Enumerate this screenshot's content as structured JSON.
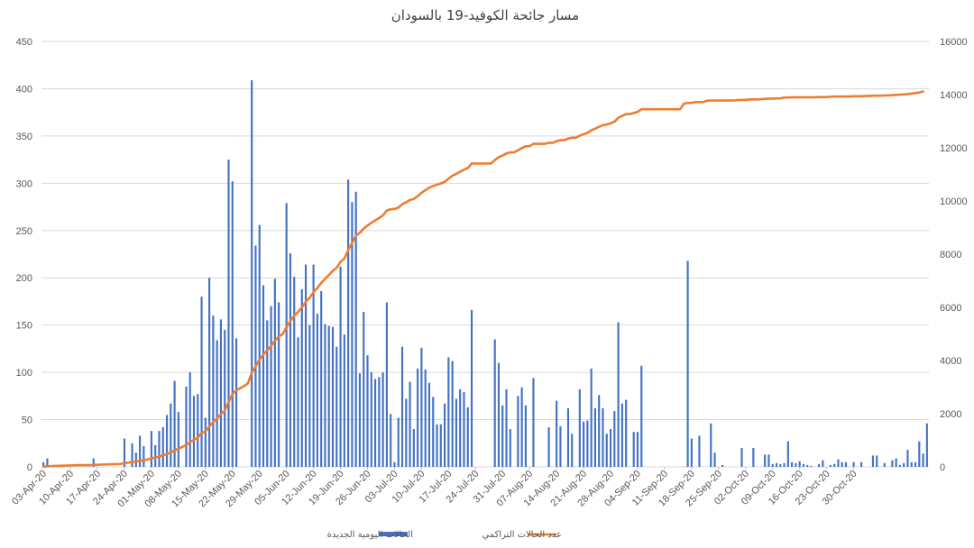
{
  "chart_data": {
    "type": "bar+line",
    "title": "مسار جائحة الكوفيد-19 بالسودان",
    "xlabel": "",
    "ylabel": "",
    "y_left_lim": [
      0,
      450
    ],
    "y_left_ticks": [
      0,
      50,
      100,
      150,
      200,
      250,
      300,
      350,
      400,
      450
    ],
    "y_right_lim": [
      0,
      16000
    ],
    "y_right_ticks": [
      0,
      2000,
      4000,
      6000,
      8000,
      10000,
      12000,
      14000,
      16000
    ],
    "x_tick_labels": [
      "03-Apr-20",
      "10-Apr-20",
      "17-Apr-20",
      "24-Apr-20",
      "01-May-20",
      "08-May-20",
      "15-May-20",
      "22-May-20",
      "29-May-20",
      "05-Jun-20",
      "12-Jun-20",
      "19-Jun-20",
      "26-Jun-20",
      "03-Jul-20",
      "10-Jul-20",
      "17-Jul-20",
      "24-Jul-20",
      "31-Jul-20",
      "07-Aug-20",
      "14-Aug-20",
      "21-Aug-20",
      "28-Aug-20",
      "04-Sep-20",
      "11-Sep-20",
      "18-Sep-20",
      "25-Sep-20",
      "02-Oct-20",
      "09-Oct-20",
      "16-Oct-20",
      "23-Oct-20",
      "30-Oct-20"
    ],
    "grid": true,
    "legend_position": "bottom",
    "colors": {
      "bars": "#4472c4",
      "line": "#ed7d31",
      "grid": "#d9d9d9",
      "text": "#595959"
    },
    "series": [
      {
        "name": "الحالات اليومية الجديدة",
        "type": "bar",
        "axis": "left",
        "values": [
          5,
          9,
          0,
          0,
          0,
          0,
          0,
          0,
          0,
          0,
          0,
          0,
          0,
          9,
          0,
          0,
          0,
          0,
          0,
          0,
          0,
          30,
          0,
          25,
          15,
          33,
          22,
          0,
          38,
          23,
          38,
          42,
          55,
          67,
          91,
          58,
          0,
          85,
          100,
          75,
          77,
          180,
          52,
          200,
          160,
          134,
          156,
          145,
          325,
          302,
          136,
          0,
          0,
          0,
          409,
          234,
          256,
          192,
          155,
          170,
          199,
          174,
          0,
          279,
          226,
          201,
          137,
          188,
          214,
          150,
          214,
          162,
          186,
          151,
          149,
          148,
          127,
          212,
          140,
          304,
          280,
          291,
          99,
          164,
          118,
          100,
          93,
          95,
          100,
          174,
          56,
          5,
          52,
          127,
          72,
          90,
          40,
          104,
          126,
          103,
          89,
          74,
          45,
          45,
          67,
          116,
          112,
          72,
          82,
          79,
          63,
          166,
          0,
          0,
          0,
          0,
          0,
          135,
          110,
          65,
          82,
          40,
          0,
          75,
          84,
          65,
          0,
          94,
          0,
          0,
          0,
          42,
          0,
          70,
          43,
          0,
          62,
          35,
          0,
          82,
          48,
          49,
          104,
          62,
          76,
          62,
          35,
          40,
          59,
          153,
          67,
          71,
          0,
          37,
          37,
          107,
          0,
          0,
          0,
          0,
          0,
          0,
          0,
          0,
          0,
          0,
          0,
          218,
          30,
          0,
          33,
          0,
          0,
          46,
          15,
          0,
          2,
          0,
          0,
          0,
          0,
          20,
          0,
          0,
          20,
          0,
          0,
          13,
          13,
          3,
          4,
          3,
          4,
          27,
          5,
          4,
          6,
          3,
          2,
          1,
          0,
          3,
          7,
          0,
          2,
          3,
          8,
          5,
          5,
          0,
          5,
          0,
          5,
          0,
          0,
          12,
          12,
          0,
          4,
          0,
          7,
          9,
          2,
          4,
          18,
          5,
          5,
          27,
          14,
          46
        ]
      },
      {
        "name": "عدد الحالات التراكمي",
        "type": "line",
        "axis": "right",
        "values": [
          10,
          20,
          30,
          35,
          40,
          45,
          50,
          55,
          60,
          65,
          66,
          66,
          66,
          75,
          80,
          85,
          90,
          95,
          100,
          105,
          110,
          140,
          160,
          185,
          200,
          230,
          250,
          280,
          320,
          350,
          390,
          430,
          480,
          540,
          620,
          690,
          750,
          830,
          930,
          1020,
          1100,
          1280,
          1330,
          1520,
          1690,
          1820,
          1980,
          2120,
          2440,
          2740,
          2880,
          2960,
          3040,
          3140,
          3540,
          3780,
          4030,
          4220,
          4380,
          4550,
          4740,
          4910,
          4990,
          5260,
          5480,
          5690,
          5830,
          6000,
          6210,
          6360,
          6570,
          6730,
          6920,
          7070,
          7220,
          7370,
          7490,
          7710,
          7840,
          8150,
          8420,
          8700,
          8800,
          8960,
          9080,
          9180,
          9270,
          9360,
          9460,
          9640,
          9690,
          9700,
          9750,
          9880,
          9950,
          10040,
          10080,
          10180,
          10310,
          10410,
          10500,
          10570,
          10610,
          10660,
          10720,
          10840,
          10950,
          11020,
          11100,
          11180,
          11240,
          11410,
          11410,
          11410,
          11410,
          11410,
          11410,
          11540,
          11650,
          11710,
          11790,
          11830,
          11830,
          11910,
          11990,
          12060,
          12060,
          12150,
          12150,
          12150,
          12150,
          12190,
          12190,
          12250,
          12290,
          12290,
          12350,
          12380,
          12380,
          12460,
          12510,
          12560,
          12660,
          12720,
          12790,
          12850,
          12880,
          12920,
          12980,
          13130,
          13200,
          13270,
          13270,
          13310,
          13350,
          13450,
          13450,
          13450,
          13450,
          13450,
          13450,
          13450,
          13450,
          13450,
          13450,
          13450,
          13660,
          13690,
          13690,
          13720,
          13720,
          13720,
          13770,
          13780,
          13780,
          13780,
          13780,
          13780,
          13780,
          13780,
          13800,
          13800,
          13800,
          13820,
          13820,
          13820,
          13830,
          13840,
          13850,
          13850,
          13860,
          13860,
          13890,
          13890,
          13900,
          13900,
          13900,
          13900,
          13900,
          13900,
          13900,
          13910,
          13910,
          13910,
          13920,
          13930,
          13930,
          13930,
          13930,
          13930,
          13940,
          13940,
          13940,
          13950,
          13950,
          13960,
          13960,
          13960,
          13970,
          13970,
          13980,
          13990,
          14000,
          14010,
          14020,
          14040,
          14060,
          14080,
          14120
        ]
      }
    ]
  }
}
